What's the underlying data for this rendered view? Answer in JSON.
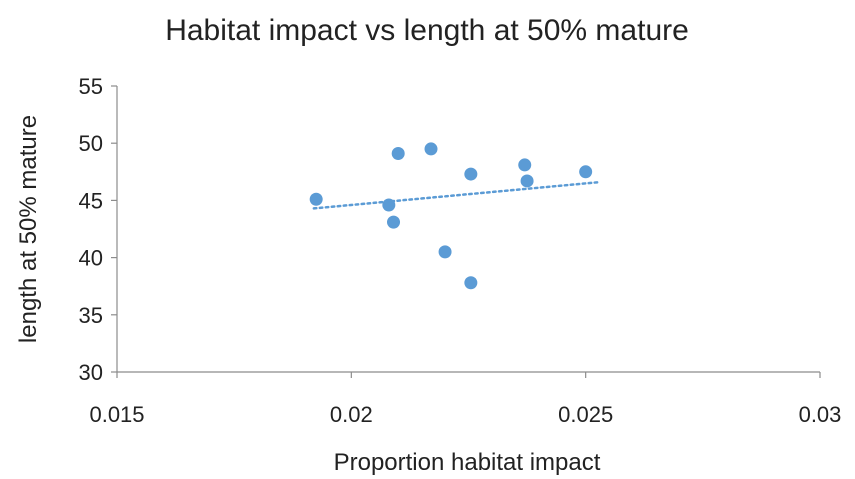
{
  "chart_data": {
    "type": "scatter",
    "title": "Habitat impact vs length at 50% mature",
    "xlabel": "Proportion habitat impact",
    "ylabel": "length at 50% mature",
    "xlim": [
      0.015,
      0.03
    ],
    "ylim": [
      30,
      55
    ],
    "x_ticks": [
      0.015,
      0.02,
      0.025,
      0.03
    ],
    "x_tick_labels": [
      "0.015",
      "0.02",
      "0.025",
      "0.03"
    ],
    "y_ticks": [
      30,
      35,
      40,
      45,
      50,
      55
    ],
    "y_tick_labels": [
      "30",
      "35",
      "40",
      "45",
      "50",
      "55"
    ],
    "grid": false,
    "legend": "none",
    "colors": {
      "points": "#5b9bd5",
      "trendline": "#5b9bd5",
      "axis": "#8c8c8c"
    },
    "series": [
      {
        "points": [
          {
            "x": 0.01925,
            "y": 45.1
          },
          {
            "x": 0.0208,
            "y": 44.6
          },
          {
            "x": 0.0209,
            "y": 43.1
          },
          {
            "x": 0.021,
            "y": 49.1
          },
          {
            "x": 0.0217,
            "y": 49.5
          },
          {
            "x": 0.022,
            "y": 40.5
          },
          {
            "x": 0.02255,
            "y": 47.3
          },
          {
            "x": 0.02255,
            "y": 37.8
          },
          {
            "x": 0.0237,
            "y": 48.1
          },
          {
            "x": 0.02375,
            "y": 46.7
          },
          {
            "x": 0.025,
            "y": 47.5
          }
        ],
        "trendline": {
          "type": "linear",
          "from": {
            "x": 0.0192,
            "y": 44.3
          },
          "to": {
            "x": 0.0253,
            "y": 46.6
          }
        }
      }
    ]
  }
}
